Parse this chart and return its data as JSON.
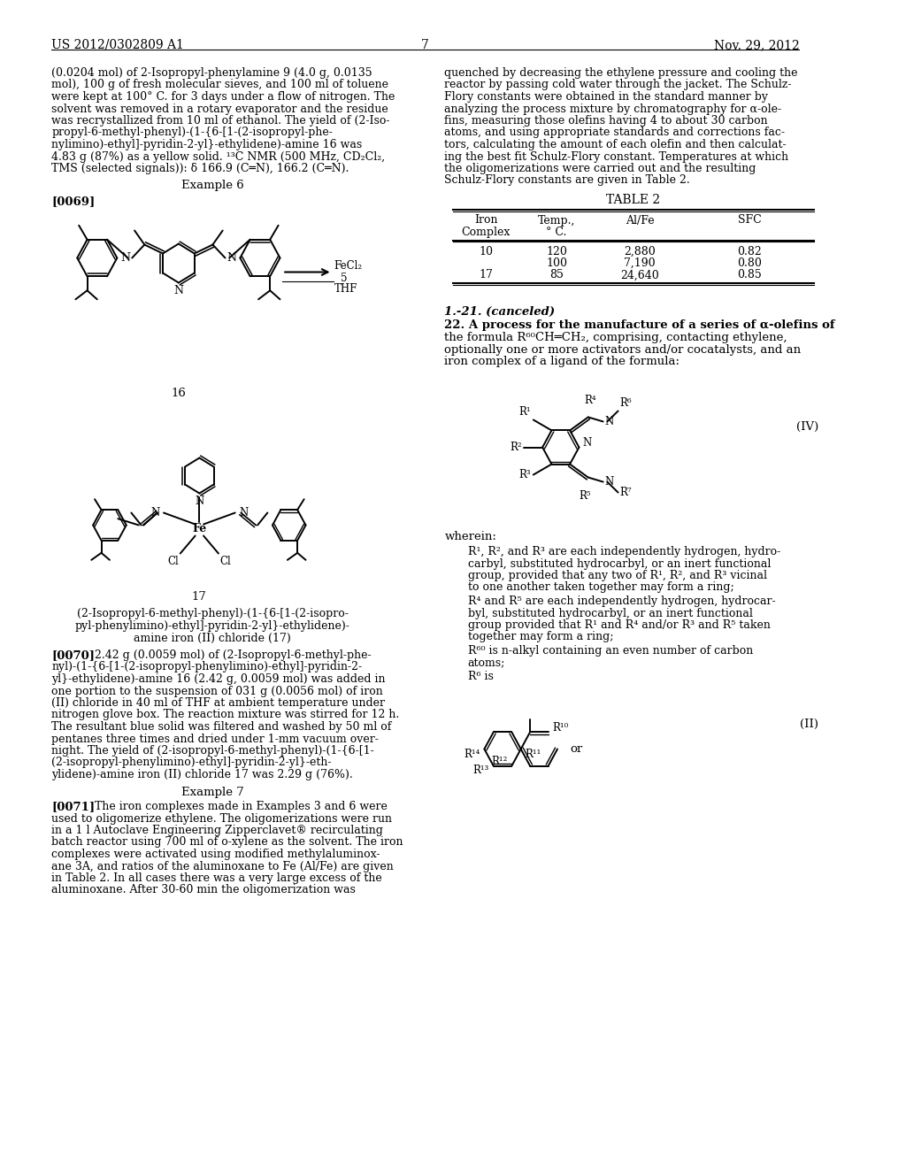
{
  "page_number": "7",
  "header_left": "US 2012/0302809 A1",
  "header_right": "Nov. 29, 2012",
  "background_color": "#ffffff"
}
